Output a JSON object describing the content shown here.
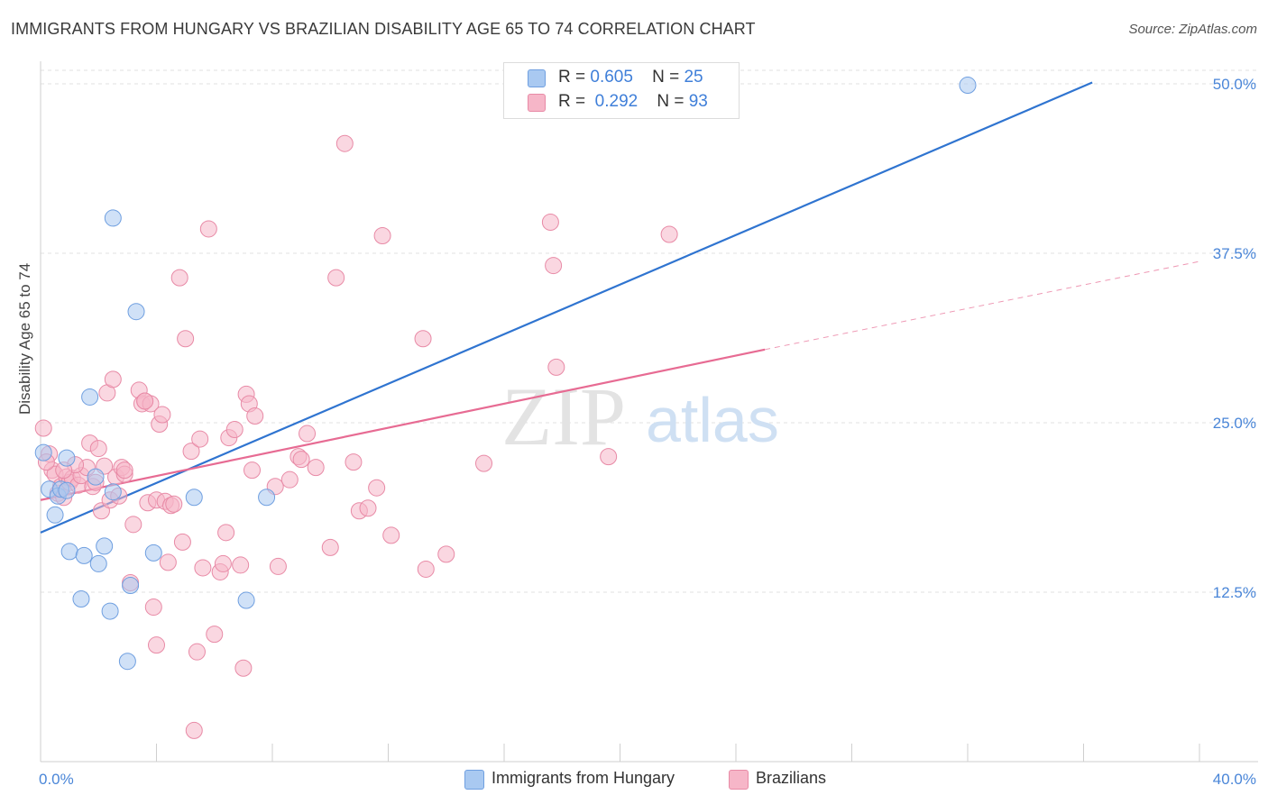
{
  "header": {
    "title": "IMMIGRANTS FROM HUNGARY VS BRAZILIAN DISABILITY AGE 65 TO 74 CORRELATION CHART",
    "source": "Source: ZipAtlas.com"
  },
  "watermark": {
    "zip": "ZIP",
    "atlas": "atlas"
  },
  "legend": {
    "rows": [
      {
        "r_label": "R =",
        "r_value": "0.605",
        "n_label": "N =",
        "n_value": "25",
        "color": "#a9c9f1"
      },
      {
        "r_label": "R =",
        "r_value": "0.292",
        "n_label": "N =",
        "n_value": "93",
        "color": "#f6b6c8"
      }
    ]
  },
  "bottom_legend": [
    {
      "label": "Immigrants from Hungary",
      "color": "#a9c9f1"
    },
    {
      "label": "Brazilians",
      "color": "#f6b6c8"
    }
  ],
  "chart_data": {
    "type": "scatter",
    "title": "IMMIGRANTS FROM HUNGARY VS BRAZILIAN DISABILITY AGE 65 TO 74 CORRELATION CHART",
    "xlabel": "",
    "ylabel": "Disability Age 65 to 74",
    "xlim": [
      0,
      40
    ],
    "ylim": [
      0,
      51
    ],
    "x_tick_labels": [
      "0.0%",
      "40.0%"
    ],
    "y_ticks": [
      12.5,
      25.0,
      37.5,
      50.0
    ],
    "y_tick_labels": [
      "12.5%",
      "25.0%",
      "37.5%",
      "50.0%"
    ],
    "grid": true,
    "legend_position": "top-center",
    "series": [
      {
        "name": "Immigrants from Hungary",
        "color": "#a9c9f1",
        "edge": "#6f9fe0",
        "line_color": "#2f74d0",
        "trend": {
          "x": [
            0,
            36.3
          ],
          "y": [
            16.9,
            50.1
          ],
          "dashed_to": null
        },
        "points": [
          [
            0.1,
            22.8
          ],
          [
            0.3,
            20.1
          ],
          [
            0.5,
            18.2
          ],
          [
            0.6,
            19.6
          ],
          [
            0.7,
            20.1
          ],
          [
            0.9,
            22.4
          ],
          [
            1.0,
            15.5
          ],
          [
            1.4,
            12.0
          ],
          [
            1.5,
            15.2
          ],
          [
            1.7,
            26.9
          ],
          [
            2.0,
            14.6
          ],
          [
            2.2,
            15.9
          ],
          [
            2.4,
            11.1
          ],
          [
            2.5,
            40.1
          ],
          [
            3.0,
            7.4
          ],
          [
            3.1,
            13.0
          ],
          [
            3.3,
            33.2
          ],
          [
            3.9,
            15.4
          ],
          [
            5.3,
            19.5
          ],
          [
            7.1,
            11.9
          ],
          [
            7.8,
            19.5
          ],
          [
            32.0,
            49.9
          ],
          [
            1.9,
            21.0
          ],
          [
            0.9,
            20.0
          ],
          [
            2.5,
            19.9
          ]
        ]
      },
      {
        "name": "Brazilians",
        "color": "#f6b6c8",
        "edge": "#e88aa6",
        "line_color": "#e76b93",
        "trend": {
          "x": [
            0,
            25.0
          ],
          "y": [
            19.3,
            30.4
          ],
          "dashed_to": [
            40.0,
            36.9
          ]
        },
        "points": [
          [
            0.1,
            24.6
          ],
          [
            0.3,
            22.7
          ],
          [
            0.4,
            21.5
          ],
          [
            0.5,
            21.2
          ],
          [
            0.6,
            19.8
          ],
          [
            0.7,
            20.3
          ],
          [
            0.8,
            19.5
          ],
          [
            0.9,
            21.0
          ],
          [
            1.0,
            20.6
          ],
          [
            1.1,
            20.9
          ],
          [
            1.3,
            20.4
          ],
          [
            1.4,
            21.1
          ],
          [
            1.6,
            21.7
          ],
          [
            1.7,
            23.5
          ],
          [
            1.8,
            20.3
          ],
          [
            1.9,
            20.6
          ],
          [
            2.0,
            23.1
          ],
          [
            2.1,
            18.5
          ],
          [
            2.2,
            21.8
          ],
          [
            2.3,
            27.2
          ],
          [
            2.4,
            19.3
          ],
          [
            2.5,
            28.2
          ],
          [
            2.6,
            21.0
          ],
          [
            2.7,
            19.6
          ],
          [
            2.8,
            21.7
          ],
          [
            2.9,
            21.2
          ],
          [
            3.1,
            13.2
          ],
          [
            3.2,
            17.5
          ],
          [
            3.4,
            27.4
          ],
          [
            3.5,
            26.4
          ],
          [
            3.6,
            26.6
          ],
          [
            3.7,
            19.1
          ],
          [
            3.8,
            26.4
          ],
          [
            3.9,
            11.4
          ],
          [
            4.0,
            19.3
          ],
          [
            4.1,
            24.9
          ],
          [
            4.2,
            25.6
          ],
          [
            4.3,
            19.2
          ],
          [
            4.4,
            14.7
          ],
          [
            4.5,
            18.9
          ],
          [
            4.6,
            19.0
          ],
          [
            4.8,
            35.7
          ],
          [
            4.9,
            16.2
          ],
          [
            5.0,
            31.2
          ],
          [
            5.2,
            22.9
          ],
          [
            5.4,
            8.1
          ],
          [
            5.5,
            23.8
          ],
          [
            5.6,
            14.3
          ],
          [
            5.8,
            39.3
          ],
          [
            6.0,
            9.4
          ],
          [
            6.2,
            14.0
          ],
          [
            6.3,
            14.6
          ],
          [
            6.4,
            16.9
          ],
          [
            6.5,
            23.9
          ],
          [
            6.7,
            24.5
          ],
          [
            6.9,
            14.5
          ],
          [
            7.0,
            6.9
          ],
          [
            7.1,
            27.1
          ],
          [
            7.2,
            26.4
          ],
          [
            7.3,
            21.5
          ],
          [
            7.4,
            25.5
          ],
          [
            8.2,
            14.4
          ],
          [
            8.6,
            20.8
          ],
          [
            8.9,
            22.5
          ],
          [
            9.0,
            22.3
          ],
          [
            9.2,
            24.2
          ],
          [
            9.5,
            21.7
          ],
          [
            10.0,
            15.8
          ],
          [
            10.2,
            35.7
          ],
          [
            10.5,
            45.6
          ],
          [
            10.8,
            22.1
          ],
          [
            11.0,
            18.5
          ],
          [
            11.3,
            18.7
          ],
          [
            11.6,
            20.2
          ],
          [
            11.8,
            38.8
          ],
          [
            12.1,
            16.7
          ],
          [
            13.2,
            31.2
          ],
          [
            13.3,
            14.2
          ],
          [
            14.0,
            15.3
          ],
          [
            15.3,
            22.0
          ],
          [
            17.6,
            39.8
          ],
          [
            17.7,
            36.6
          ],
          [
            17.8,
            29.1
          ],
          [
            19.6,
            22.5
          ],
          [
            21.7,
            38.9
          ],
          [
            5.3,
            2.3
          ],
          [
            4.0,
            8.6
          ],
          [
            2.9,
            21.5
          ],
          [
            1.2,
            21.9
          ],
          [
            0.2,
            22.1
          ],
          [
            0.8,
            21.5
          ],
          [
            3.6,
            26.6
          ],
          [
            8.1,
            20.3
          ]
        ]
      }
    ]
  }
}
